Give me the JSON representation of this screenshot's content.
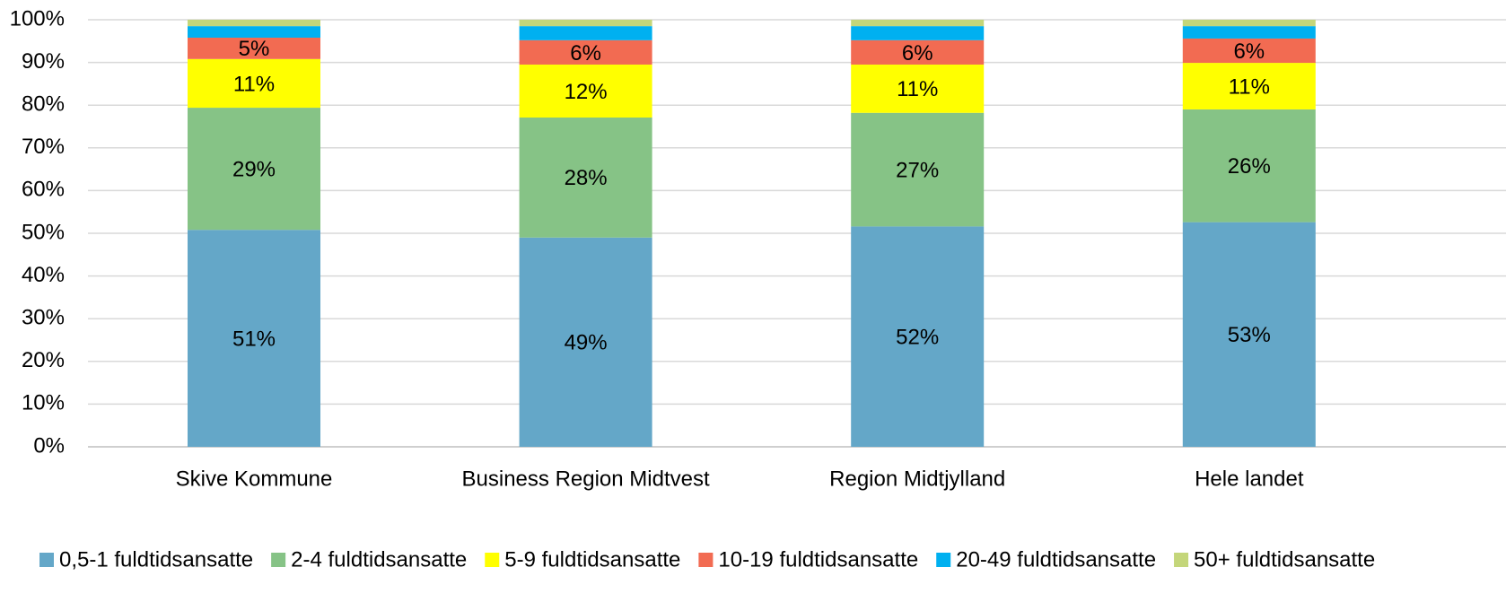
{
  "chart_data": {
    "type": "stacked_bar",
    "categories": [
      "Skive Kommune",
      "Business Region Midtvest",
      "Region Midtjylland",
      "Hele landet"
    ],
    "series": [
      {
        "name": "0,5-1 fuldtidsansatte",
        "color": "#64a7c8",
        "values": [
          50.8,
          49.0,
          51.6,
          52.6
        ],
        "value_labels": [
          "51%",
          "49%",
          "52%",
          "53%"
        ]
      },
      {
        "name": "2-4 fuldtidsansatte",
        "color": "#86c386",
        "values": [
          28.6,
          28.1,
          26.6,
          26.4
        ],
        "value_labels": [
          "29%",
          "28%",
          "27%",
          "26%"
        ]
      },
      {
        "name": "5-9 fuldtidsansatte",
        "color": "#ffff00",
        "values": [
          11.4,
          12.4,
          11.3,
          10.9
        ],
        "value_labels": [
          "11%",
          "12%",
          "11%",
          "11%"
        ]
      },
      {
        "name": "10-19 fuldtidsansatte",
        "color": "#f26b52",
        "values": [
          5.0,
          5.7,
          5.7,
          5.7
        ],
        "value_labels": [
          "5%",
          "6%",
          "6%",
          "6%"
        ]
      },
      {
        "name": "20-49 fuldtidsansatte",
        "color": "#00b0f0",
        "values": [
          2.7,
          3.3,
          3.3,
          2.9
        ],
        "value_labels": [
          null,
          null,
          null,
          null
        ]
      },
      {
        "name": "50+ fuldtidsansatte",
        "color": "#c4d67a",
        "values": [
          1.5,
          1.5,
          1.5,
          1.5
        ],
        "value_labels": [
          null,
          null,
          null,
          null
        ]
      }
    ],
    "ylim": [
      0,
      100
    ],
    "yticks": [
      {
        "value": 0,
        "label": "0%"
      },
      {
        "value": 10,
        "label": "10%"
      },
      {
        "value": 20,
        "label": "20%"
      },
      {
        "value": 30,
        "label": "30%"
      },
      {
        "value": 40,
        "label": "40%"
      },
      {
        "value": 50,
        "label": "50%"
      },
      {
        "value": 60,
        "label": "60%"
      },
      {
        "value": 70,
        "label": "70%"
      },
      {
        "value": 80,
        "label": "80%"
      },
      {
        "value": 90,
        "label": "90%"
      },
      {
        "value": 100,
        "label": "100%"
      }
    ],
    "grid": true,
    "legend": "bottom"
  }
}
